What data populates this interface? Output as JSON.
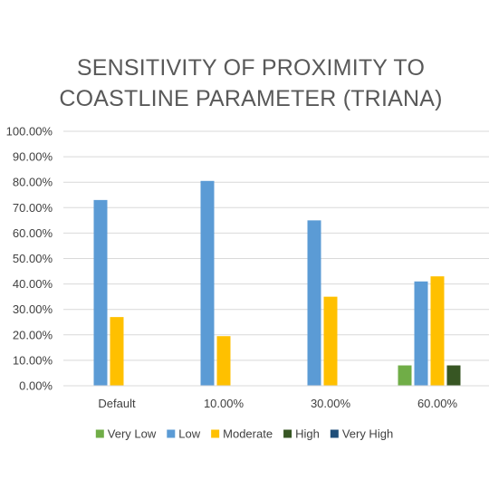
{
  "chart_data": {
    "type": "bar",
    "title": "SENSITIVITY OF PROXIMITY TO COASTLINE PARAMETER (TRIANA)",
    "title_lines": [
      "SENSITIVITY OF PROXIMITY TO",
      "COASTLINE PARAMETER (TRIANA)"
    ],
    "categories": [
      "Default",
      "10.00%",
      "30.00%",
      "60.00%"
    ],
    "series": [
      {
        "name": "Very Low",
        "color": "#70ad47",
        "values": [
          0,
          0,
          0,
          8
        ]
      },
      {
        "name": "Low",
        "color": "#5b9bd5",
        "values": [
          73,
          80.5,
          65,
          41
        ]
      },
      {
        "name": "Moderate",
        "color": "#ffc000",
        "values": [
          27,
          19.5,
          35,
          43
        ]
      },
      {
        "name": "High",
        "color": "#375623",
        "values": [
          0,
          0,
          0,
          8
        ]
      },
      {
        "name": "Very High",
        "color": "#1f4e79",
        "values": [
          0,
          0,
          0,
          0
        ]
      }
    ],
    "yticks": [
      "0.00%",
      "10.00%",
      "20.00%",
      "30.00%",
      "40.00%",
      "50.00%",
      "60.00%",
      "70.00%",
      "80.00%",
      "90.00%",
      "100.00%"
    ],
    "ylim": [
      0,
      100
    ],
    "grid": true,
    "legend_position": "bottom",
    "xlabel": "",
    "ylabel": ""
  }
}
